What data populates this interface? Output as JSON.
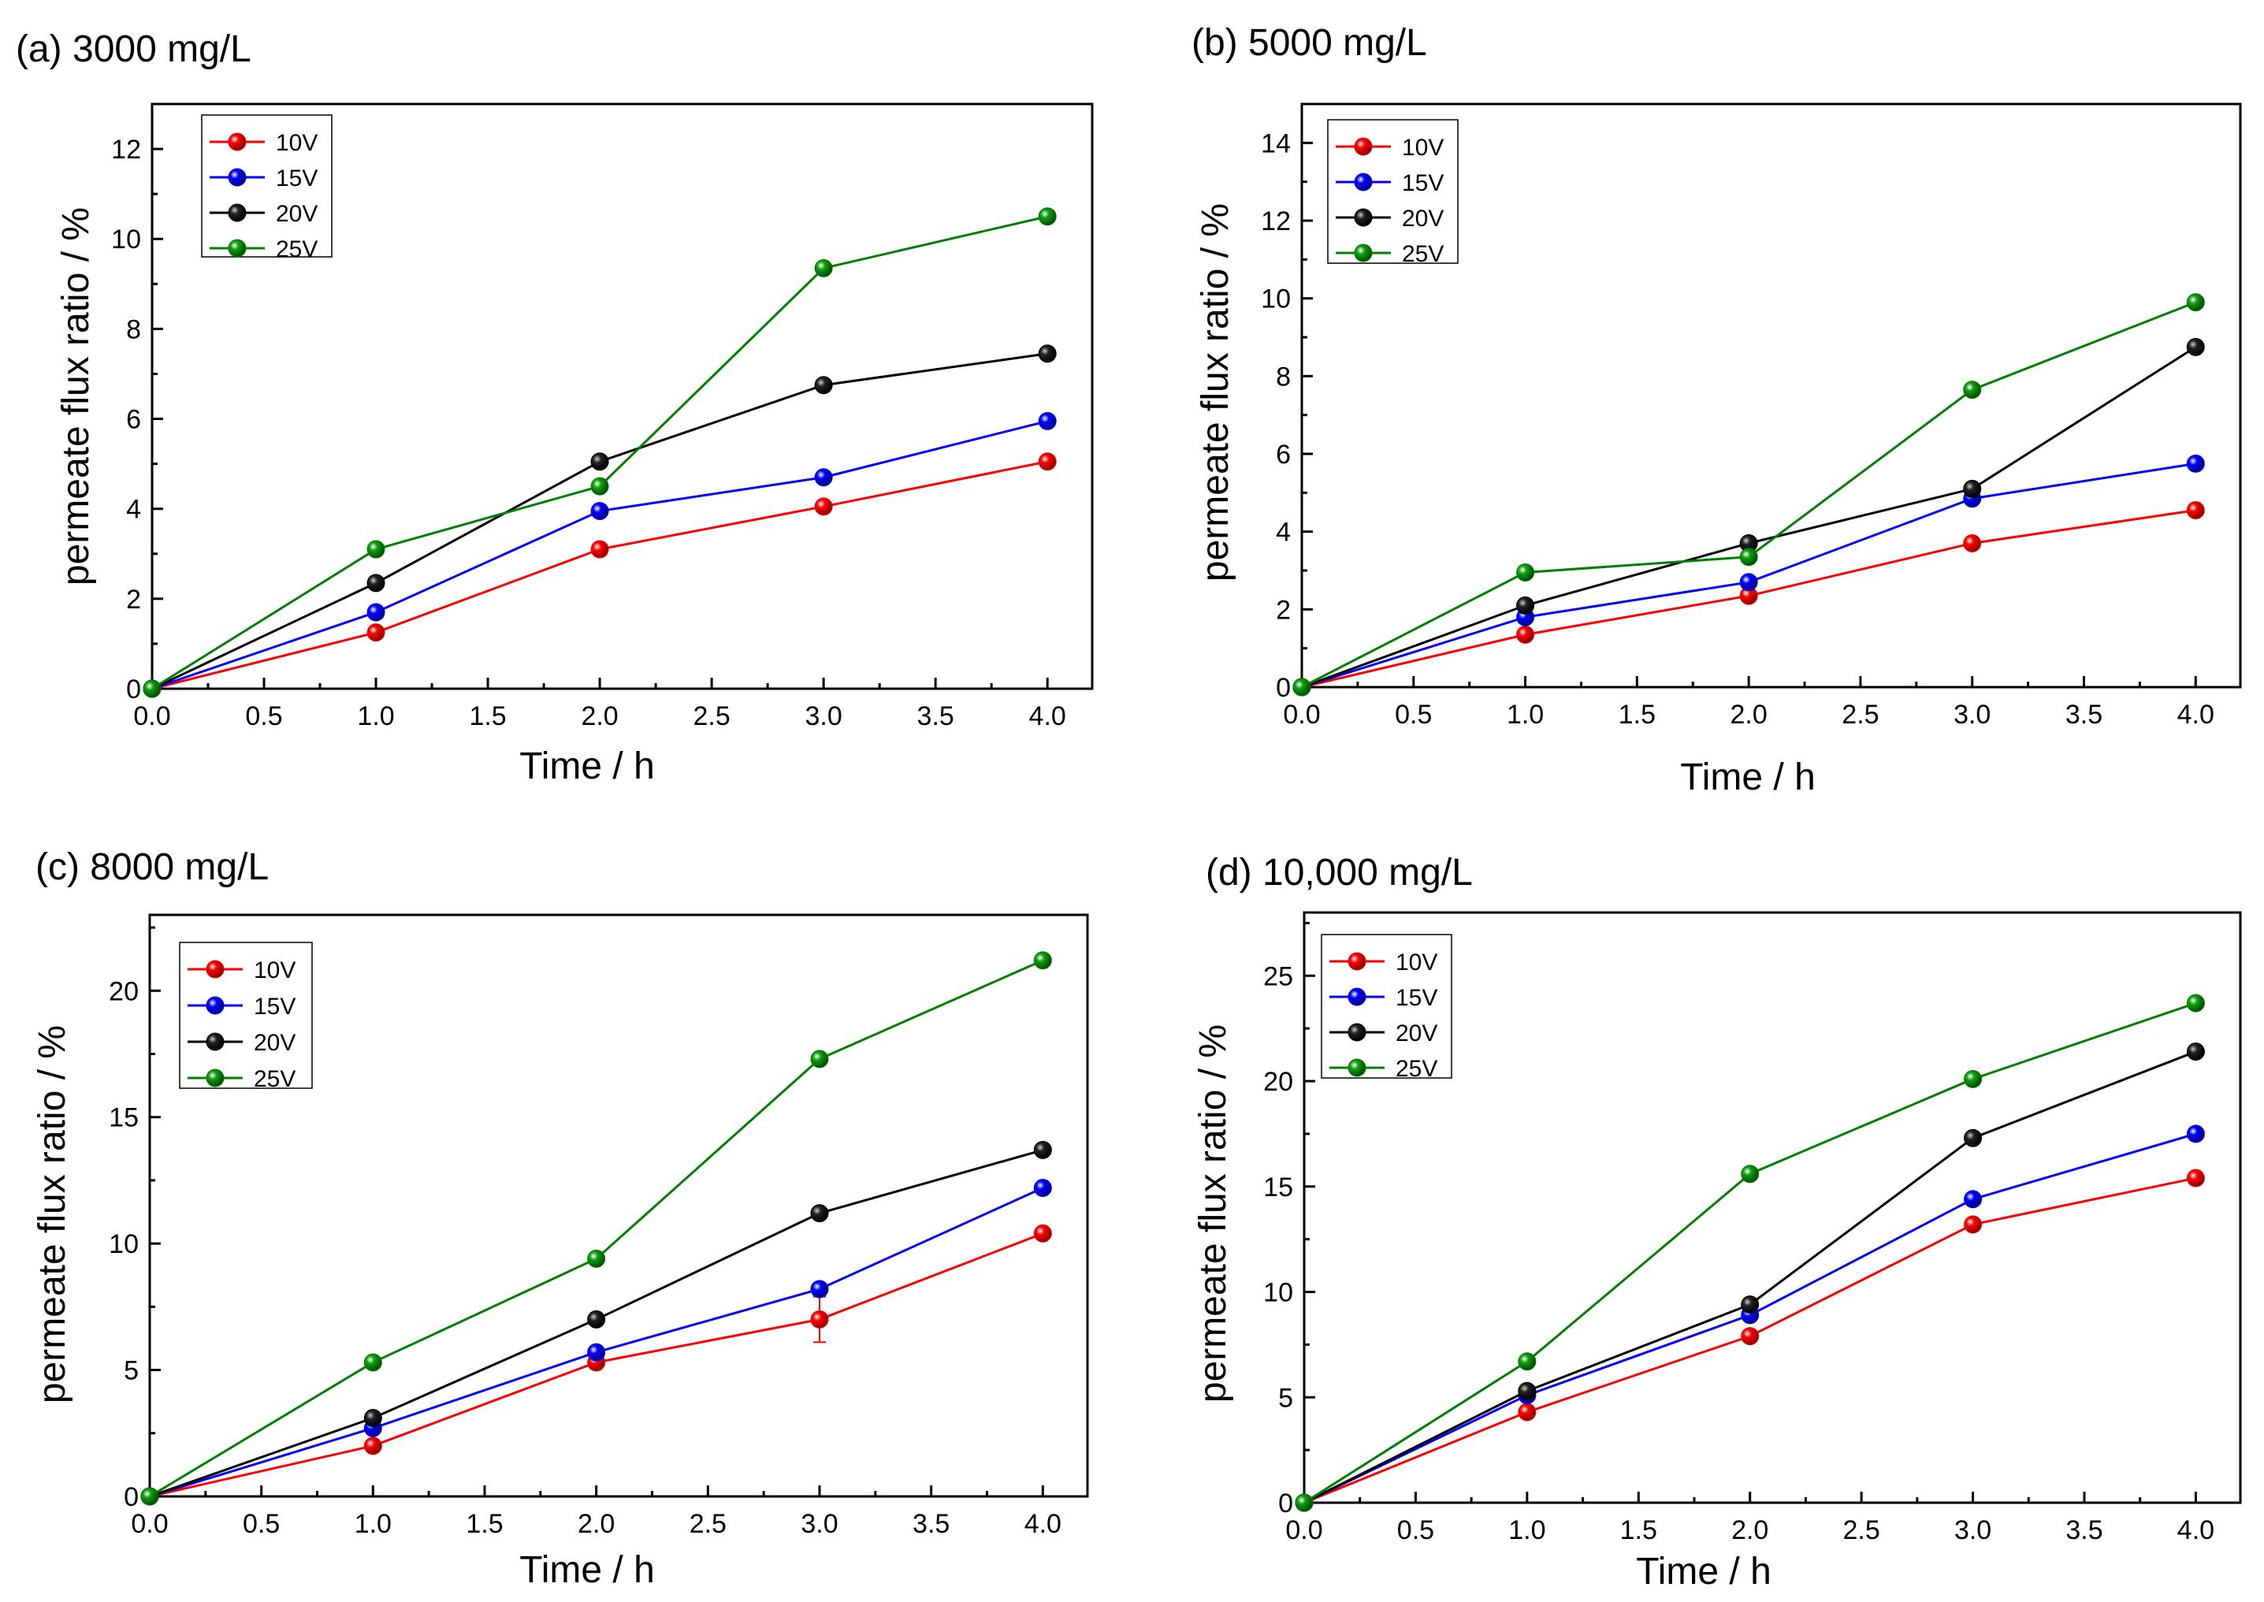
{
  "chart_data": [
    {
      "type": "line",
      "title": "(a) 3000 mg/L",
      "xlabel": "Time / h",
      "ylabel": "permeate flux ratio / %",
      "xlim": [
        0,
        4.2
      ],
      "ylim": [
        0,
        13
      ],
      "xticks": [
        0,
        0.5,
        1,
        1.5,
        2,
        2.5,
        3,
        3.5,
        4
      ],
      "xtick_labels": [
        "0.0",
        "0.5",
        "1.0",
        "1.5",
        "2.0",
        "2.5",
        "3.0",
        "3.5",
        "4.0"
      ],
      "yticks": [
        0,
        2,
        4,
        6,
        8,
        10,
        12
      ],
      "ytick_labels": [
        "0",
        "2",
        "4",
        "6",
        "8",
        "10",
        "12"
      ],
      "x": [
        0,
        1,
        2,
        3,
        4
      ],
      "legend_position": "top-left",
      "series": [
        {
          "name": "10V",
          "color": "#ff0000",
          "values": [
            0,
            1.25,
            3.1,
            4.05,
            5.05
          ]
        },
        {
          "name": "15V",
          "color": "#0000ff",
          "values": [
            0,
            1.7,
            3.95,
            4.7,
            5.95
          ]
        },
        {
          "name": "20V",
          "color": "#000000",
          "values": [
            0,
            2.35,
            5.05,
            6.75,
            7.45
          ]
        },
        {
          "name": "25V",
          "color": "#008000",
          "values": [
            0,
            3.1,
            4.5,
            9.35,
            10.5
          ]
        }
      ]
    },
    {
      "type": "line",
      "title": "(b) 5000 mg/L",
      "xlabel": "Time / h",
      "ylabel": "permeate flux ratio / %",
      "xlim": [
        0,
        4.2
      ],
      "ylim": [
        0,
        15
      ],
      "xticks": [
        0,
        0.5,
        1,
        1.5,
        2,
        2.5,
        3,
        3.5,
        4
      ],
      "xtick_labels": [
        "0.0",
        "0.5",
        "1.0",
        "1.5",
        "2.0",
        "2.5",
        "3.0",
        "3.5",
        "4.0"
      ],
      "yticks": [
        0,
        2,
        4,
        6,
        8,
        10,
        12,
        14
      ],
      "ytick_labels": [
        "0",
        "2",
        "4",
        "6",
        "8",
        "10",
        "12",
        "14"
      ],
      "x": [
        0,
        1,
        2,
        3,
        4
      ],
      "legend_position": "top-left",
      "series": [
        {
          "name": "10V",
          "color": "#ff0000",
          "values": [
            0,
            1.35,
            2.35,
            3.7,
            4.55
          ]
        },
        {
          "name": "15V",
          "color": "#0000ff",
          "values": [
            0,
            1.8,
            2.7,
            4.85,
            5.75
          ]
        },
        {
          "name": "20V",
          "color": "#000000",
          "values": [
            0,
            2.1,
            3.7,
            5.1,
            8.75
          ]
        },
        {
          "name": "25V",
          "color": "#008000",
          "values": [
            0,
            2.95,
            3.35,
            7.65,
            9.9
          ]
        }
      ]
    },
    {
      "type": "line",
      "title": "(c) 8000 mg/L",
      "xlabel": "Time / h",
      "ylabel": "permeate flux ratio / %",
      "xlim": [
        0,
        4.2
      ],
      "ylim": [
        0,
        23
      ],
      "xticks": [
        0,
        0.5,
        1,
        1.5,
        2,
        2.5,
        3,
        3.5,
        4
      ],
      "xtick_labels": [
        "0.0",
        "0.5",
        "1.0",
        "1.5",
        "2.0",
        "2.5",
        "3.0",
        "3.5",
        "4.0"
      ],
      "yticks": [
        0,
        5,
        10,
        15,
        20
      ],
      "ytick_labels": [
        "0",
        "5",
        "10",
        "15",
        "20"
      ],
      "x": [
        0,
        1,
        2,
        3,
        4
      ],
      "legend_position": "top-left",
      "series": [
        {
          "name": "10V",
          "color": "#ff0000",
          "values": [
            0,
            2.0,
            5.3,
            7.0,
            10.4
          ],
          "error": [
            0,
            0,
            0,
            0.9,
            0
          ]
        },
        {
          "name": "15V",
          "color": "#0000ff",
          "values": [
            0,
            2.7,
            5.7,
            8.2,
            12.2
          ]
        },
        {
          "name": "20V",
          "color": "#000000",
          "values": [
            0,
            3.1,
            7.0,
            11.2,
            13.7
          ]
        },
        {
          "name": "25V",
          "color": "#008000",
          "values": [
            0,
            5.3,
            9.4,
            17.3,
            21.2
          ]
        }
      ]
    },
    {
      "type": "line",
      "title": "(d) 10,000 mg/L",
      "xlabel": "Time / h",
      "ylabel": "permeate flux ratio / %",
      "xlim": [
        0,
        4.2
      ],
      "ylim": [
        0,
        28
      ],
      "xticks": [
        0,
        0.5,
        1,
        1.5,
        2,
        2.5,
        3,
        3.5,
        4
      ],
      "xtick_labels": [
        "0.0",
        "0.5",
        "1.0",
        "1.5",
        "2.0",
        "2.5",
        "3.0",
        "3.5",
        "4.0"
      ],
      "yticks": [
        0,
        5,
        10,
        15,
        20,
        25
      ],
      "ytick_labels": [
        "0",
        "5",
        "10",
        "15",
        "20",
        "25"
      ],
      "x": [
        0,
        1,
        2,
        3,
        4
      ],
      "legend_position": "top-left",
      "series": [
        {
          "name": "10V",
          "color": "#ff0000",
          "values": [
            0,
            4.3,
            7.9,
            13.2,
            15.4
          ]
        },
        {
          "name": "15V",
          "color": "#0000ff",
          "values": [
            0,
            5.1,
            8.9,
            14.4,
            17.5
          ]
        },
        {
          "name": "20V",
          "color": "#000000",
          "values": [
            0,
            5.3,
            9.4,
            17.3,
            21.4
          ]
        },
        {
          "name": "25V",
          "color": "#008000",
          "values": [
            0,
            6.7,
            15.6,
            20.1,
            23.7
          ]
        }
      ]
    }
  ]
}
